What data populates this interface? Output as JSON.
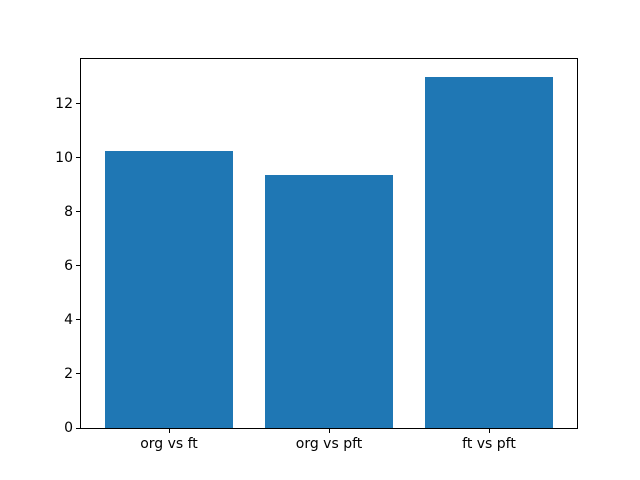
{
  "chart_data": {
    "type": "bar",
    "categories": [
      "org vs ft",
      "org vs pft",
      "ft vs pft"
    ],
    "values": [
      10.25,
      9.35,
      13.0
    ],
    "title": "",
    "xlabel": "",
    "ylabel": "",
    "ylim": [
      0,
      13.65
    ],
    "yticks": [
      0,
      2,
      4,
      6,
      8,
      10,
      12
    ],
    "bar_width_units": 0.8,
    "grid": false,
    "legend_position": "none"
  },
  "colors": {
    "bar": "#1f77b4",
    "spine": "#000000",
    "tick_label": "#000000",
    "background": "#ffffff"
  }
}
